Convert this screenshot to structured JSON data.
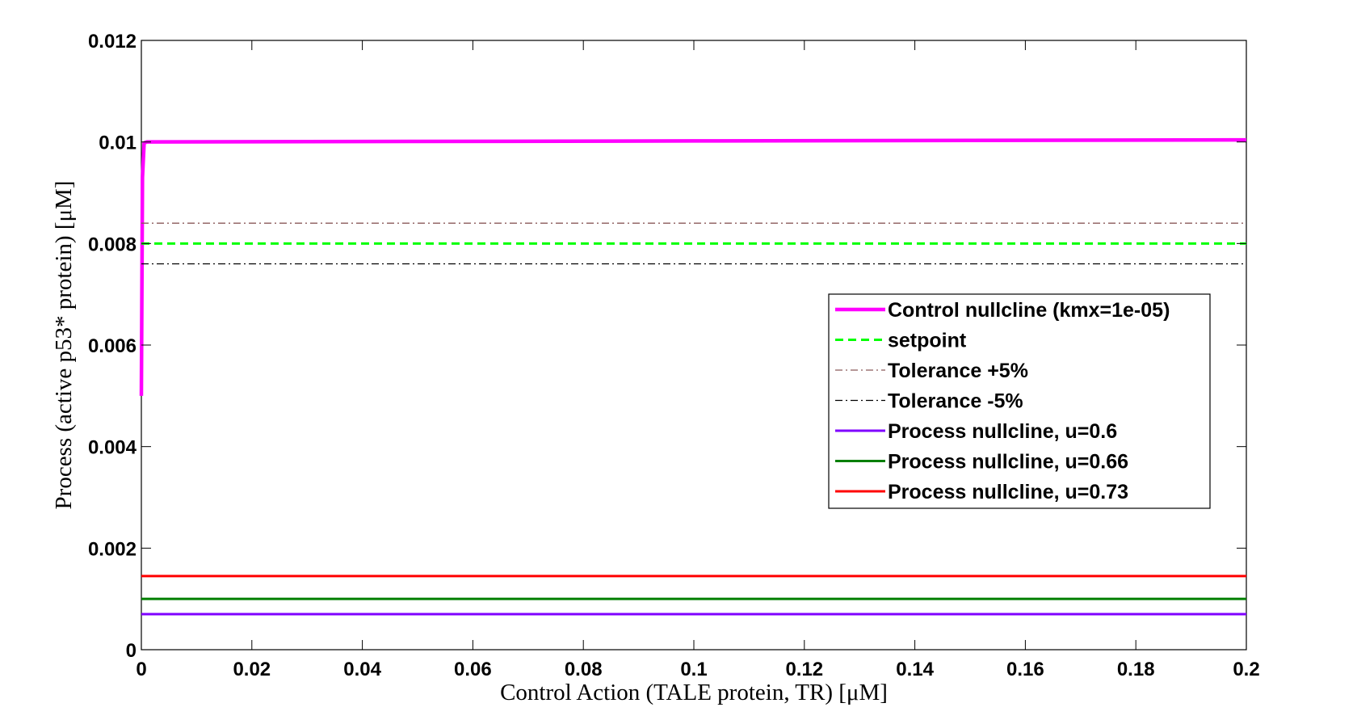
{
  "chart_data": {
    "type": "line",
    "title": "",
    "xlabel": "Control Action (TALE protein, TR) [μM]",
    "ylabel": "Process (active p53* protein) [μM]",
    "xlim": [
      0,
      0.2
    ],
    "ylim": [
      0,
      0.012
    ],
    "x_ticks": [
      "0",
      "0.02",
      "0.04",
      "0.06",
      "0.08",
      "0.1",
      "0.12",
      "0.14",
      "0.16",
      "0.18",
      "0.2"
    ],
    "y_ticks": [
      "0",
      "0.002",
      "0.004",
      "0.006",
      "0.008",
      "0.01",
      "0.012"
    ],
    "grid": false,
    "legend_position": "center-right",
    "series": [
      {
        "name": "Control nullcline (kmx=1e-05)",
        "color": "#ff00ff",
        "style": "solid-thick",
        "x": [
          0,
          0.0002,
          0.0005,
          0.001,
          0.05,
          0.1,
          0.15,
          0.2
        ],
        "y": [
          0.005,
          0.0093,
          0.00998,
          0.01,
          0.01001,
          0.01002,
          0.01003,
          0.01004
        ]
      },
      {
        "name": "setpoint",
        "color": "#00ff00",
        "style": "dashed",
        "x": [
          0,
          0.2
        ],
        "y": [
          0.008,
          0.008
        ]
      },
      {
        "name": "Tolerance +5%",
        "color": "#8b5a5a",
        "style": "dashdot",
        "x": [
          0,
          0.2
        ],
        "y": [
          0.0084,
          0.0084
        ]
      },
      {
        "name": "Tolerance -5%",
        "color": "#000000",
        "style": "dashdot",
        "x": [
          0,
          0.2
        ],
        "y": [
          0.0076,
          0.0076
        ]
      },
      {
        "name": "Process nullcline, u=0.6",
        "color": "#7f00ff",
        "style": "solid",
        "x": [
          0,
          0.2
        ],
        "y": [
          0.0007,
          0.0007
        ]
      },
      {
        "name": "Process nullcline, u=0.66",
        "color": "#007f00",
        "style": "solid",
        "x": [
          0,
          0.2
        ],
        "y": [
          0.001,
          0.001
        ]
      },
      {
        "name": "Process nullcline, u=0.73",
        "color": "#ff0000",
        "style": "solid",
        "x": [
          0,
          0.2
        ],
        "y": [
          0.00145,
          0.00145
        ]
      }
    ]
  }
}
